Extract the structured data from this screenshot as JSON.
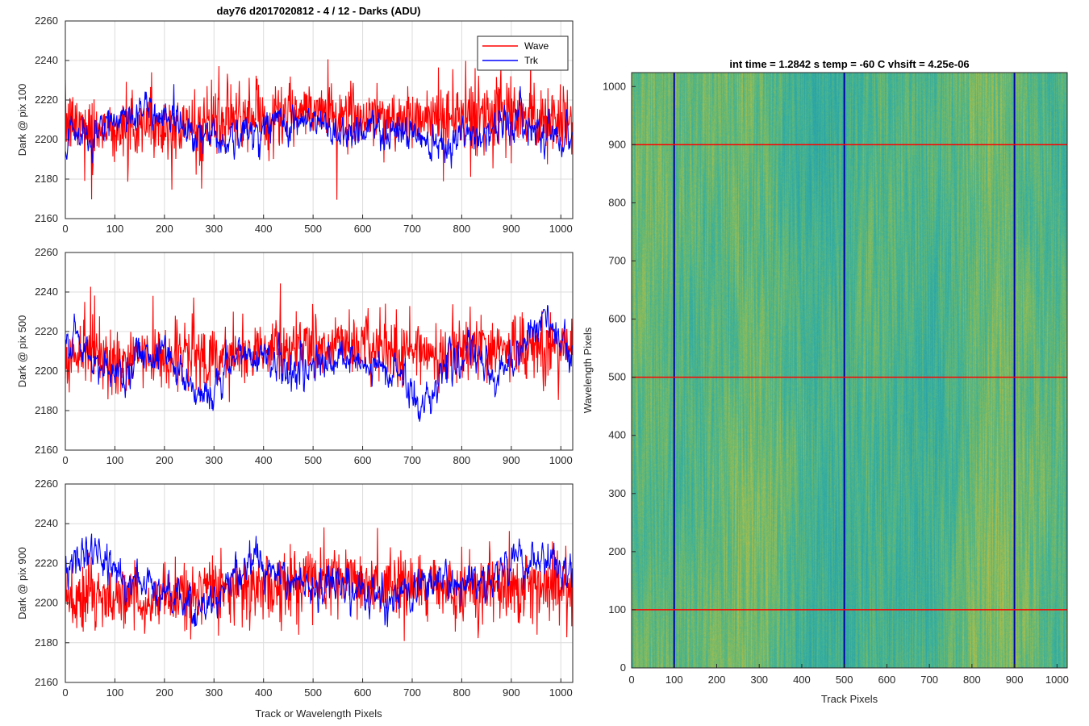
{
  "chart_data": [
    {
      "type": "line",
      "title": "day76 d2017020812 - 4 / 12 - Darks (ADU)",
      "xlabel": "",
      "ylabel": "Dark @ pix 100",
      "xlim": [
        0,
        1024
      ],
      "ylim": [
        2160,
        2260
      ],
      "xticks": [
        0,
        100,
        200,
        300,
        400,
        500,
        600,
        700,
        800,
        900,
        1000
      ],
      "yticks": [
        2160,
        2180,
        2200,
        2220,
        2240,
        2260
      ],
      "grid": true,
      "legend": {
        "position": "top-right",
        "entries": [
          "Wave",
          "Trk"
        ]
      },
      "series": [
        {
          "name": "Wave",
          "color": "#ff0000",
          "n_points": 1024,
          "profile_x": [
            0,
            100,
            200,
            300,
            400,
            500,
            600,
            700,
            800,
            900,
            1024
          ],
          "profile_y": [
            2208,
            2206,
            2206,
            2208,
            2212,
            2214,
            2212,
            2210,
            2212,
            2212,
            2210
          ],
          "noise_std": 8
        },
        {
          "name": "Trk",
          "color": "#0000ff",
          "n_points": 1024,
          "profile_x": [
            0,
            60,
            100,
            140,
            200,
            260,
            330,
            400,
            450,
            500,
            560,
            600,
            680,
            760,
            830,
            900,
            960,
            1024
          ],
          "profile_y": [
            2196,
            2202,
            2210,
            2214,
            2214,
            2204,
            2200,
            2206,
            2210,
            2208,
            2204,
            2206,
            2204,
            2200,
            2202,
            2210,
            2206,
            2200
          ],
          "noise_std": 4
        }
      ]
    },
    {
      "type": "line",
      "title": "",
      "xlabel": "",
      "ylabel": "Dark @ pix 500",
      "xlim": [
        0,
        1024
      ],
      "ylim": [
        2160,
        2260
      ],
      "xticks": [
        0,
        100,
        200,
        300,
        400,
        500,
        600,
        700,
        800,
        900,
        1000
      ],
      "yticks": [
        2160,
        2180,
        2200,
        2220,
        2240,
        2260
      ],
      "grid": true,
      "series": [
        {
          "name": "Wave",
          "color": "#ff0000",
          "n_points": 1024,
          "profile_x": [
            0,
            100,
            200,
            300,
            400,
            500,
            600,
            700,
            800,
            900,
            1024
          ],
          "profile_y": [
            2208,
            2206,
            2208,
            2208,
            2210,
            2212,
            2212,
            2210,
            2210,
            2212,
            2210
          ],
          "noise_std": 8
        },
        {
          "name": "Trk",
          "color": "#0000ff",
          "n_points": 1024,
          "profile_x": [
            0,
            20,
            60,
            100,
            160,
            200,
            250,
            290,
            340,
            400,
            450,
            500,
            560,
            620,
            680,
            720,
            760,
            820,
            870,
            920,
            960,
            1000,
            1024
          ],
          "profile_y": [
            2218,
            2214,
            2202,
            2198,
            2210,
            2212,
            2194,
            2186,
            2206,
            2210,
            2200,
            2202,
            2204,
            2202,
            2198,
            2180,
            2202,
            2208,
            2196,
            2212,
            2228,
            2214,
            2204
          ],
          "noise_std": 4
        }
      ]
    },
    {
      "type": "line",
      "title": "",
      "xlabel": "Track or Wavelength Pixels",
      "ylabel": "Dark @ pix 900",
      "xlim": [
        0,
        1024
      ],
      "ylim": [
        2160,
        2260
      ],
      "xticks": [
        0,
        100,
        200,
        300,
        400,
        500,
        600,
        700,
        800,
        900,
        1000
      ],
      "yticks": [
        2160,
        2180,
        2200,
        2220,
        2240,
        2260
      ],
      "grid": true,
      "series": [
        {
          "name": "Wave",
          "color": "#ff0000",
          "n_points": 1024,
          "profile_x": [
            0,
            100,
            200,
            300,
            400,
            500,
            600,
            700,
            800,
            900,
            1024
          ],
          "profile_y": [
            2204,
            2202,
            2202,
            2206,
            2210,
            2210,
            2210,
            2208,
            2206,
            2208,
            2208
          ],
          "noise_std": 8
        },
        {
          "name": "Trk",
          "color": "#0000ff",
          "n_points": 1024,
          "profile_x": [
            0,
            40,
            80,
            120,
            200,
            260,
            300,
            380,
            420,
            480,
            540,
            600,
            650,
            700,
            750,
            800,
            860,
            920,
            960,
            1024
          ],
          "profile_y": [
            2218,
            2226,
            2224,
            2210,
            2208,
            2196,
            2204,
            2222,
            2214,
            2210,
            2210,
            2206,
            2200,
            2206,
            2212,
            2208,
            2216,
            2220,
            2222,
            2212
          ],
          "noise_std": 4
        }
      ]
    },
    {
      "type": "heatmap",
      "title": "int time = 1.2842 s    temp = -60 C    vhsift = 4.25e-06",
      "xlabel": "Track Pixels",
      "ylabel": "Wavelength Pixels",
      "xlim": [
        0,
        1024
      ],
      "ylim": [
        0,
        1024
      ],
      "xticks": [
        0,
        100,
        200,
        300,
        400,
        500,
        600,
        700,
        800,
        900,
        1000
      ],
      "yticks": [
        0,
        100,
        200,
        300,
        400,
        500,
        600,
        700,
        800,
        900,
        1000
      ],
      "colormap": [
        "#2aa3a8",
        "#3cb19a",
        "#6ab86f",
        "#a7bd4e",
        "#d0ba3a"
      ],
      "texture": "vertical streaks",
      "vertical_lines": {
        "x": [
          100,
          500,
          900
        ],
        "color": "#0000aa"
      },
      "horizontal_lines": {
        "y": [
          100,
          500,
          900
        ],
        "color": "#ff0000"
      }
    }
  ]
}
